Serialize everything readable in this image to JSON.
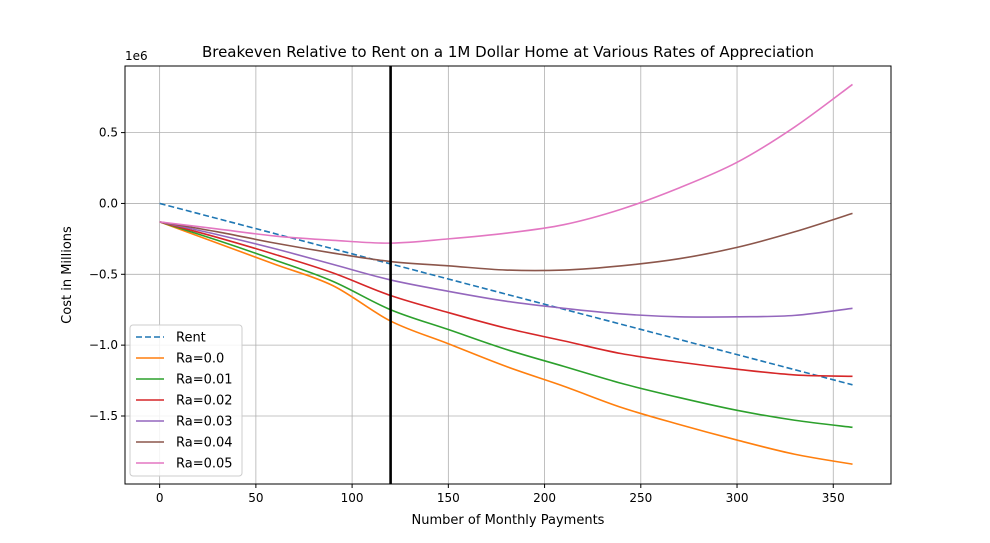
{
  "chart_data": {
    "type": "line",
    "title": "Breakeven Relative to Rent on a 1M Dollar Home at Various Rates of Appreciation",
    "xlabel": "Number of Monthly Payments",
    "ylabel": "Cost in Millions",
    "y_offset_label": "1e6",
    "xlim": [
      -18,
      380
    ],
    "ylim": [
      -1.98,
      0.97
    ],
    "x_ticks": [
      0,
      50,
      100,
      150,
      200,
      250,
      300,
      350
    ],
    "x_tick_labels": [
      "0",
      "50",
      "100",
      "150",
      "200",
      "250",
      "300",
      "350"
    ],
    "y_ticks": [
      -1.5,
      -1.0,
      -0.5,
      0.0,
      0.5
    ],
    "y_tick_labels": [
      "−1.5",
      "−1.0",
      "−0.5",
      "0.0",
      "0.5"
    ],
    "grid": true,
    "legend_position": "lower-left",
    "vertical_line": {
      "x": 120,
      "color": "#000000"
    },
    "series": [
      {
        "name": "Rent",
        "color": "#1f77b4",
        "dashed": true,
        "x": [
          0,
          360
        ],
        "y": [
          0.0,
          -1.28
        ]
      },
      {
        "name": "Ra=0.0",
        "color": "#ff7f0e",
        "dashed": false,
        "x": [
          0,
          30,
          60,
          90,
          120,
          150,
          180,
          210,
          240,
          270,
          300,
          330,
          360
        ],
        "y": [
          -0.13,
          -0.28,
          -0.43,
          -0.58,
          -0.83,
          -0.99,
          -1.15,
          -1.29,
          -1.44,
          -1.56,
          -1.67,
          -1.77,
          -1.84
        ]
      },
      {
        "name": "Ra=0.01",
        "color": "#2ca02c",
        "dashed": false,
        "x": [
          0,
          30,
          60,
          90,
          120,
          150,
          180,
          210,
          240,
          270,
          300,
          330,
          360
        ],
        "y": [
          -0.13,
          -0.26,
          -0.4,
          -0.55,
          -0.75,
          -0.89,
          -1.03,
          -1.15,
          -1.27,
          -1.37,
          -1.46,
          -1.53,
          -1.58
        ]
      },
      {
        "name": "Ra=0.02",
        "color": "#d62728",
        "dashed": false,
        "x": [
          0,
          30,
          60,
          90,
          120,
          150,
          180,
          210,
          240,
          270,
          300,
          330,
          360
        ],
        "y": [
          -0.13,
          -0.24,
          -0.36,
          -0.49,
          -0.65,
          -0.77,
          -0.88,
          -0.97,
          -1.06,
          -1.12,
          -1.17,
          -1.21,
          -1.22
        ]
      },
      {
        "name": "Ra=0.03",
        "color": "#9467bd",
        "dashed": false,
        "x": [
          0,
          30,
          60,
          90,
          120,
          150,
          180,
          210,
          240,
          270,
          300,
          330,
          360
        ],
        "y": [
          -0.13,
          -0.22,
          -0.32,
          -0.43,
          -0.54,
          -0.62,
          -0.69,
          -0.74,
          -0.78,
          -0.8,
          -0.8,
          -0.79,
          -0.74
        ]
      },
      {
        "name": "Ra=0.04",
        "color": "#8c564b",
        "dashed": false,
        "x": [
          0,
          30,
          60,
          90,
          120,
          150,
          180,
          210,
          240,
          270,
          300,
          330,
          360
        ],
        "y": [
          -0.13,
          -0.2,
          -0.28,
          -0.35,
          -0.41,
          -0.44,
          -0.47,
          -0.47,
          -0.44,
          -0.39,
          -0.31,
          -0.2,
          -0.07
        ]
      },
      {
        "name": "Ra=0.05",
        "color": "#e377c2",
        "dashed": false,
        "x": [
          0,
          30,
          60,
          90,
          120,
          150,
          180,
          210,
          240,
          270,
          300,
          330,
          360
        ],
        "y": [
          -0.13,
          -0.18,
          -0.23,
          -0.26,
          -0.28,
          -0.25,
          -0.21,
          -0.15,
          -0.04,
          0.11,
          0.29,
          0.54,
          0.84
        ]
      }
    ]
  }
}
